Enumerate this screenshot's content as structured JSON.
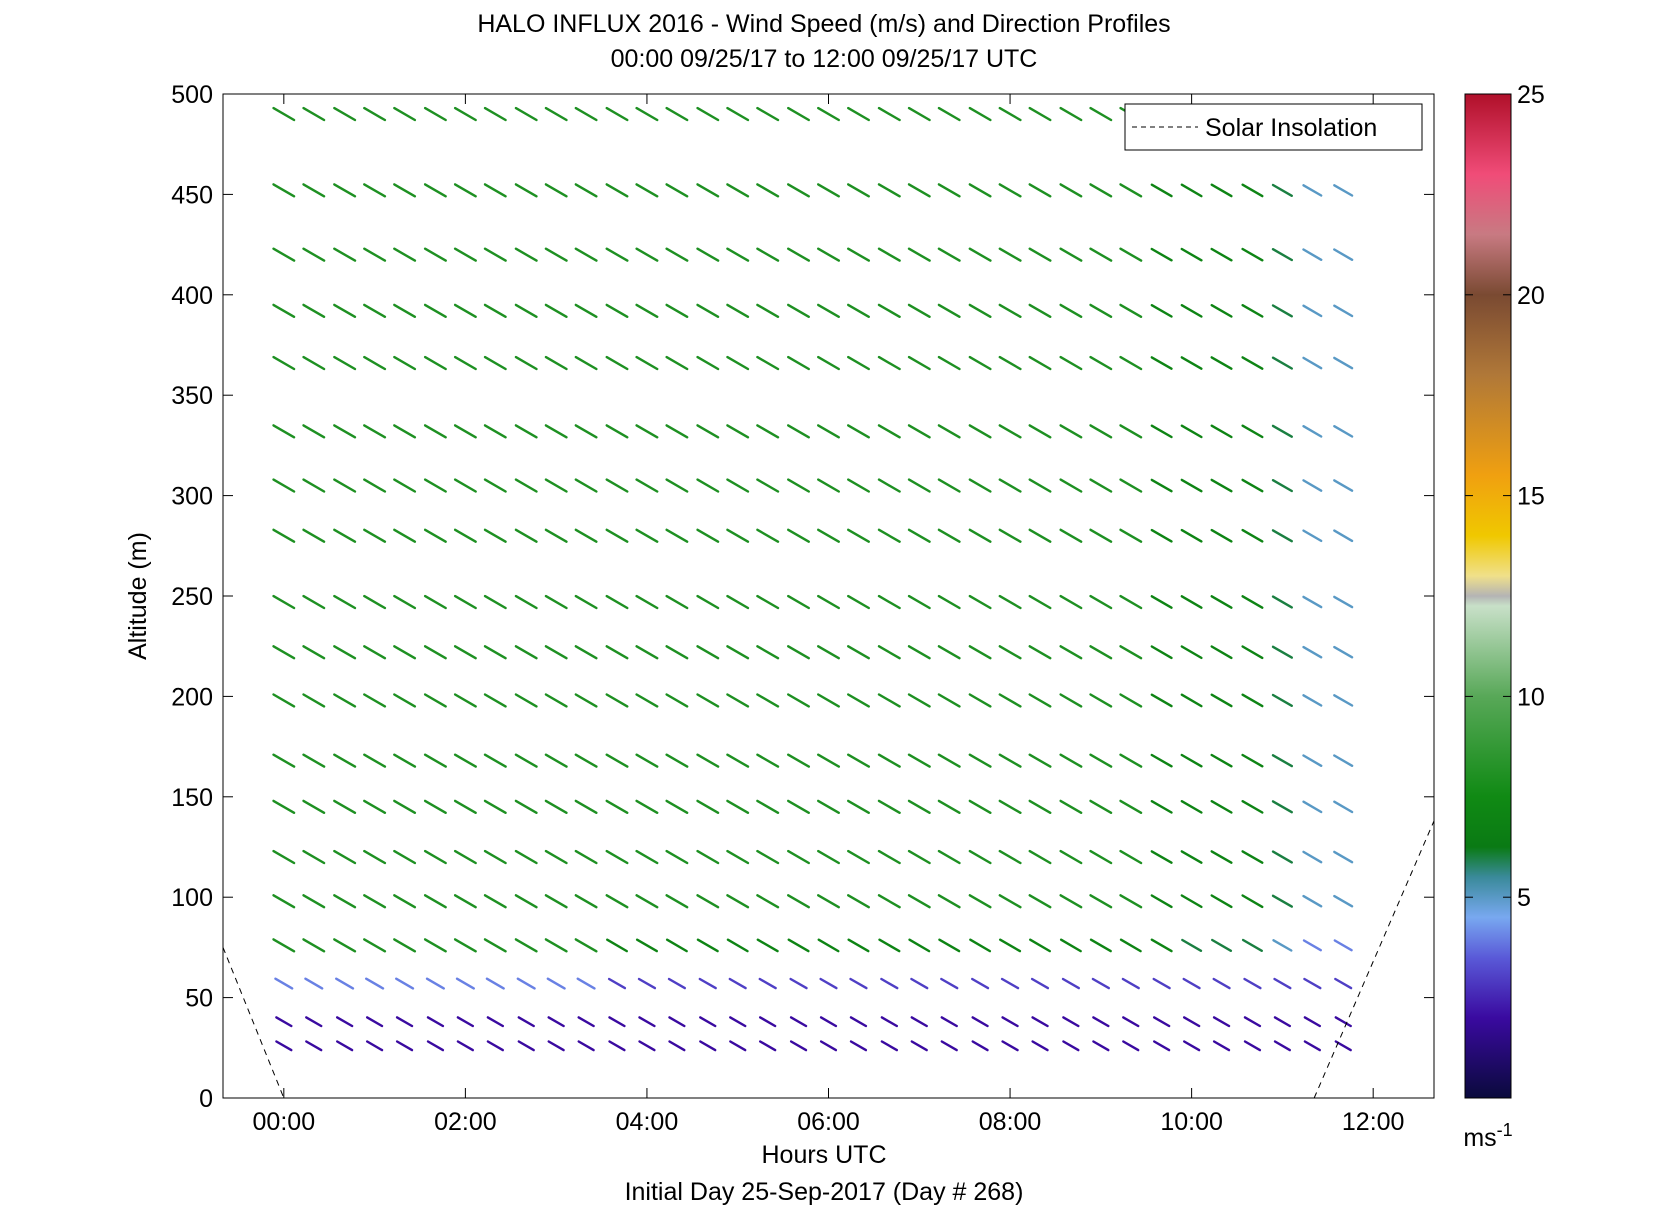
{
  "chart_data": {
    "type": "wind-barb-profile",
    "title": "HALO INFLUX 2016 - Wind Speed (m/s) and Direction Profiles",
    "subtitle": "00:00 09/25/17 to 12:00 09/25/17  UTC",
    "xlabel": "Hours UTC",
    "xlabel2": "Initial Day 25-Sep-2017 (Day # 268)",
    "ylabel": "Altitude (m)",
    "xlim": [
      -0.67,
      12.67
    ],
    "ylim": [
      0,
      500
    ],
    "x_ticks": [
      0,
      2,
      4,
      6,
      8,
      10,
      12
    ],
    "x_tick_labels": [
      "00:00",
      "02:00",
      "04:00",
      "06:00",
      "08:00",
      "10:00",
      "12:00"
    ],
    "y_ticks": [
      0,
      50,
      100,
      150,
      200,
      250,
      300,
      350,
      400,
      450,
      500
    ],
    "y_tick_labels": [
      "0",
      "50",
      "100",
      "150",
      "200",
      "250",
      "300",
      "350",
      "400",
      "450",
      "500"
    ],
    "colorbar": {
      "range": [
        0,
        25
      ],
      "ticks": [
        5,
        10,
        15,
        20,
        25
      ],
      "tick_labels": [
        "5",
        "10",
        "15",
        "20",
        "25"
      ],
      "unit_base": "ms",
      "unit_exp": "-1"
    },
    "legend": {
      "position": "top-right",
      "entries": [
        "Solar Insolation"
      ]
    },
    "solar_insolation": [
      {
        "x": [
          -0.67,
          0.0
        ],
        "y": [
          75,
          0
        ]
      },
      {
        "x": [
          11.35,
          12.67
        ],
        "y": [
          0,
          138
        ]
      }
    ],
    "times_hours": [
      0.0,
      0.33,
      0.67,
      1.0,
      1.33,
      1.67,
      2.0,
      2.33,
      2.67,
      3.0,
      3.33,
      3.67,
      4.0,
      4.33,
      4.67,
      5.0,
      5.33,
      5.67,
      6.0,
      6.33,
      6.67,
      7.0,
      7.33,
      7.67,
      8.0,
      8.33,
      8.67,
      9.0,
      9.33,
      9.67,
      10.0,
      10.33,
      10.67,
      11.0,
      11.33,
      11.67
    ],
    "altitudes_m": [
      26,
      38,
      57,
      76,
      98,
      120,
      145,
      168,
      198,
      222,
      247,
      280,
      305,
      332,
      366,
      392,
      420,
      452,
      490
    ],
    "wind_speed_ms": [
      [
        2,
        2,
        2,
        2,
        2,
        2,
        2,
        2,
        2,
        2,
        2,
        2,
        2,
        2,
        2,
        2,
        2,
        2,
        2,
        2,
        2,
        2,
        2,
        2,
        2,
        2,
        2,
        2,
        2,
        2,
        2,
        2,
        2,
        2,
        2,
        2
      ],
      [
        2,
        2,
        2,
        2,
        2,
        2,
        2,
        2,
        2,
        2,
        2,
        2,
        2,
        2,
        2,
        2,
        2,
        2,
        2,
        2,
        2,
        2,
        2,
        2,
        2,
        2,
        2,
        2,
        2,
        2,
        2,
        2,
        2,
        2,
        2,
        2
      ],
      [
        4,
        4,
        4,
        4,
        4,
        4,
        4,
        4,
        4,
        4,
        4,
        3,
        3,
        3,
        3,
        3,
        3,
        3,
        3,
        3,
        3,
        3,
        3,
        3,
        3,
        3,
        3,
        3,
        3,
        3,
        3,
        3,
        3,
        3,
        3,
        3
      ],
      [
        8,
        8,
        8,
        8,
        8,
        8,
        8,
        8,
        8,
        8,
        8,
        7,
        7,
        7,
        7,
        7,
        7,
        7,
        7,
        7,
        7,
        7,
        7,
        7,
        7,
        7,
        7,
        7,
        7,
        7,
        6,
        6,
        6,
        5,
        4,
        4
      ],
      [
        8,
        8,
        8,
        8,
        8,
        8,
        8,
        8,
        8,
        8,
        8,
        8,
        8,
        8,
        8,
        8,
        8,
        8,
        8,
        8,
        8,
        8,
        8,
        8,
        8,
        8,
        8,
        8,
        8,
        7,
        7,
        7,
        7,
        6,
        5,
        5
      ],
      [
        8,
        8,
        8,
        8,
        8,
        8,
        8,
        8,
        8,
        8,
        8,
        8,
        8,
        8,
        8,
        8,
        8,
        8,
        8,
        8,
        8,
        8,
        8,
        8,
        8,
        8,
        8,
        8,
        8,
        7,
        7,
        7,
        7,
        6,
        5,
        5
      ],
      [
        8,
        8,
        8,
        8,
        8,
        8,
        8,
        8,
        8,
        8,
        8,
        8,
        8,
        8,
        8,
        8,
        8,
        8,
        8,
        8,
        8,
        8,
        8,
        8,
        8,
        8,
        8,
        8,
        8,
        7,
        7,
        7,
        7,
        6,
        5,
        5
      ],
      [
        8,
        8,
        8,
        8,
        8,
        8,
        8,
        8,
        8,
        8,
        8,
        8,
        8,
        8,
        8,
        8,
        8,
        8,
        8,
        8,
        8,
        8,
        8,
        8,
        8,
        8,
        8,
        8,
        8,
        7,
        7,
        7,
        7,
        6,
        5,
        5
      ],
      [
        8,
        8,
        8,
        8,
        8,
        8,
        8,
        8,
        8,
        8,
        8,
        8,
        8,
        8,
        8,
        8,
        8,
        8,
        8,
        8,
        8,
        8,
        8,
        8,
        8,
        8,
        8,
        8,
        8,
        7,
        7,
        7,
        7,
        6,
        5,
        5
      ],
      [
        8,
        8,
        8,
        8,
        8,
        8,
        8,
        8,
        8,
        8,
        8,
        8,
        8,
        8,
        8,
        8,
        8,
        8,
        8,
        8,
        8,
        8,
        8,
        8,
        8,
        8,
        8,
        8,
        8,
        7,
        7,
        7,
        7,
        6,
        5,
        5
      ],
      [
        8,
        8,
        8,
        8,
        8,
        8,
        8,
        8,
        8,
        8,
        8,
        8,
        8,
        8,
        8,
        8,
        8,
        8,
        8,
        8,
        8,
        8,
        8,
        8,
        8,
        8,
        8,
        8,
        8,
        7,
        7,
        7,
        7,
        6,
        5,
        5
      ],
      [
        8,
        8,
        8,
        8,
        8,
        8,
        8,
        8,
        8,
        8,
        8,
        8,
        8,
        8,
        8,
        8,
        8,
        8,
        8,
        8,
        8,
        8,
        8,
        8,
        8,
        8,
        8,
        8,
        8,
        7,
        7,
        7,
        7,
        6,
        5,
        5
      ],
      [
        8,
        8,
        8,
        8,
        8,
        8,
        8,
        8,
        8,
        8,
        8,
        8,
        8,
        8,
        8,
        8,
        8,
        8,
        8,
        8,
        8,
        8,
        8,
        8,
        8,
        8,
        8,
        8,
        8,
        7,
        7,
        7,
        7,
        6,
        5,
        5
      ],
      [
        8,
        8,
        8,
        8,
        8,
        8,
        8,
        8,
        8,
        8,
        8,
        8,
        8,
        8,
        8,
        8,
        8,
        8,
        8,
        8,
        8,
        8,
        8,
        8,
        8,
        8,
        8,
        8,
        8,
        7,
        7,
        7,
        7,
        6,
        5,
        5
      ],
      [
        8,
        8,
        8,
        8,
        8,
        8,
        8,
        8,
        8,
        8,
        8,
        8,
        8,
        8,
        8,
        8,
        8,
        8,
        8,
        8,
        8,
        8,
        8,
        8,
        8,
        8,
        8,
        8,
        8,
        7,
        7,
        7,
        7,
        6,
        5,
        5
      ],
      [
        8,
        8,
        8,
        8,
        8,
        8,
        8,
        8,
        8,
        8,
        8,
        8,
        8,
        8,
        8,
        8,
        8,
        8,
        8,
        8,
        8,
        8,
        8,
        8,
        8,
        8,
        8,
        8,
        8,
        7,
        7,
        7,
        7,
        6,
        5,
        5
      ],
      [
        8,
        8,
        8,
        8,
        8,
        8,
        8,
        8,
        8,
        8,
        8,
        8,
        8,
        8,
        8,
        8,
        8,
        8,
        8,
        8,
        8,
        8,
        8,
        8,
        8,
        8,
        8,
        8,
        8,
        7,
        7,
        7,
        7,
        6,
        5,
        5
      ],
      [
        8,
        8,
        8,
        8,
        8,
        8,
        8,
        8,
        8,
        8,
        8,
        8,
        8,
        8,
        8,
        8,
        8,
        8,
        8,
        8,
        8,
        8,
        8,
        8,
        8,
        8,
        8,
        8,
        8,
        7,
        7,
        7,
        7,
        6,
        5,
        5
      ],
      [
        8,
        8,
        8,
        8,
        8,
        8,
        8,
        8,
        8,
        8,
        8,
        8,
        8,
        8,
        8,
        8,
        8,
        8,
        8,
        8,
        8,
        8,
        8,
        8,
        8,
        8,
        8,
        8,
        8,
        7,
        7,
        7,
        7,
        6,
        5,
        5
      ]
    ],
    "wind_dir_deg": [
      [
        300,
        300,
        300,
        300,
        300,
        300,
        300,
        300,
        300,
        300,
        300,
        300,
        300,
        300,
        300,
        300,
        300,
        300,
        300,
        300,
        300,
        300,
        300,
        300,
        300,
        300,
        300,
        300,
        300,
        300,
        300,
        300,
        300,
        300,
        300,
        300
      ],
      [
        300,
        300,
        300,
        300,
        300,
        300,
        300,
        300,
        300,
        300,
        300,
        300,
        300,
        300,
        300,
        300,
        300,
        300,
        300,
        300,
        300,
        300,
        300,
        300,
        300,
        300,
        300,
        300,
        300,
        300,
        300,
        300,
        300,
        300,
        300,
        300
      ],
      [
        300,
        300,
        300,
        300,
        300,
        300,
        300,
        300,
        300,
        300,
        300,
        300,
        300,
        300,
        300,
        300,
        300,
        300,
        300,
        300,
        300,
        300,
        300,
        300,
        300,
        300,
        300,
        300,
        300,
        300,
        300,
        300,
        300,
        300,
        300,
        300
      ],
      [
        300,
        300,
        300,
        300,
        300,
        300,
        300,
        300,
        300,
        300,
        300,
        300,
        300,
        300,
        300,
        300,
        300,
        300,
        300,
        300,
        300,
        300,
        300,
        300,
        300,
        300,
        300,
        300,
        300,
        300,
        300,
        300,
        300,
        300,
        300,
        300
      ],
      [
        300,
        300,
        300,
        300,
        300,
        300,
        300,
        300,
        300,
        300,
        300,
        300,
        300,
        300,
        300,
        300,
        300,
        300,
        300,
        300,
        300,
        300,
        300,
        300,
        300,
        300,
        300,
        300,
        300,
        300,
        300,
        300,
        300,
        300,
        300,
        300
      ],
      [
        300,
        300,
        300,
        300,
        300,
        300,
        300,
        300,
        300,
        300,
        300,
        300,
        300,
        300,
        300,
        300,
        300,
        300,
        300,
        300,
        300,
        300,
        300,
        300,
        300,
        300,
        300,
        300,
        300,
        300,
        300,
        300,
        300,
        300,
        300,
        300
      ],
      [
        300,
        300,
        300,
        300,
        300,
        300,
        300,
        300,
        300,
        300,
        300,
        300,
        300,
        300,
        300,
        300,
        300,
        300,
        300,
        300,
        300,
        300,
        300,
        300,
        300,
        300,
        300,
        300,
        300,
        300,
        300,
        300,
        300,
        300,
        300,
        300
      ],
      [
        300,
        300,
        300,
        300,
        300,
        300,
        300,
        300,
        300,
        300,
        300,
        300,
        300,
        300,
        300,
        300,
        300,
        300,
        300,
        300,
        300,
        300,
        300,
        300,
        300,
        300,
        300,
        300,
        300,
        300,
        300,
        300,
        300,
        300,
        300,
        300
      ],
      [
        300,
        300,
        300,
        300,
        300,
        300,
        300,
        300,
        300,
        300,
        300,
        300,
        300,
        300,
        300,
        300,
        300,
        300,
        300,
        300,
        300,
        300,
        300,
        300,
        300,
        300,
        300,
        300,
        300,
        300,
        300,
        300,
        300,
        300,
        300,
        300
      ],
      [
        300,
        300,
        300,
        300,
        300,
        300,
        300,
        300,
        300,
        300,
        300,
        300,
        300,
        300,
        300,
        300,
        300,
        300,
        300,
        300,
        300,
        300,
        300,
        300,
        300,
        300,
        300,
        300,
        300,
        300,
        300,
        300,
        300,
        300,
        300,
        300
      ],
      [
        300,
        300,
        300,
        300,
        300,
        300,
        300,
        300,
        300,
        300,
        300,
        300,
        300,
        300,
        300,
        300,
        300,
        300,
        300,
        300,
        300,
        300,
        300,
        300,
        300,
        300,
        300,
        300,
        300,
        300,
        300,
        300,
        300,
        300,
        300,
        300
      ],
      [
        300,
        300,
        300,
        300,
        300,
        300,
        300,
        300,
        300,
        300,
        300,
        300,
        300,
        300,
        300,
        300,
        300,
        300,
        300,
        300,
        300,
        300,
        300,
        300,
        300,
        300,
        300,
        300,
        300,
        300,
        300,
        300,
        300,
        300,
        300,
        300
      ],
      [
        300,
        300,
        300,
        300,
        300,
        300,
        300,
        300,
        300,
        300,
        300,
        300,
        300,
        300,
        300,
        300,
        300,
        300,
        300,
        300,
        300,
        300,
        300,
        300,
        300,
        300,
        300,
        300,
        300,
        300,
        300,
        300,
        300,
        300,
        300,
        300
      ],
      [
        300,
        300,
        300,
        300,
        300,
        300,
        300,
        300,
        300,
        300,
        300,
        300,
        300,
        300,
        300,
        300,
        300,
        300,
        300,
        300,
        300,
        300,
        300,
        300,
        300,
        300,
        300,
        300,
        300,
        300,
        300,
        300,
        300,
        300,
        300,
        300
      ],
      [
        300,
        300,
        300,
        300,
        300,
        300,
        300,
        300,
        300,
        300,
        300,
        300,
        300,
        300,
        300,
        300,
        300,
        300,
        300,
        300,
        300,
        300,
        300,
        300,
        300,
        300,
        300,
        300,
        300,
        300,
        300,
        300,
        300,
        300,
        300,
        300
      ],
      [
        300,
        300,
        300,
        300,
        300,
        300,
        300,
        300,
        300,
        300,
        300,
        300,
        300,
        300,
        300,
        300,
        300,
        300,
        300,
        300,
        300,
        300,
        300,
        300,
        300,
        300,
        300,
        300,
        300,
        300,
        300,
        300,
        300,
        300,
        300,
        300
      ],
      [
        300,
        300,
        300,
        300,
        300,
        300,
        300,
        300,
        300,
        300,
        300,
        300,
        300,
        300,
        300,
        300,
        300,
        300,
        300,
        300,
        300,
        300,
        300,
        300,
        300,
        300,
        300,
        300,
        300,
        300,
        300,
        300,
        300,
        300,
        300,
        300
      ],
      [
        300,
        300,
        300,
        300,
        300,
        300,
        300,
        300,
        300,
        300,
        300,
        300,
        300,
        300,
        300,
        300,
        300,
        300,
        300,
        300,
        300,
        300,
        300,
        300,
        300,
        300,
        300,
        300,
        300,
        300,
        300,
        300,
        300,
        300,
        300,
        300
      ],
      [
        300,
        300,
        300,
        300,
        300,
        300,
        300,
        300,
        300,
        300,
        300,
        300,
        300,
        300,
        300,
        300,
        300,
        300,
        300,
        300,
        300,
        300,
        300,
        300,
        300,
        300,
        300,
        300,
        300,
        300,
        300,
        300,
        300,
        300,
        300,
        300
      ]
    ]
  }
}
